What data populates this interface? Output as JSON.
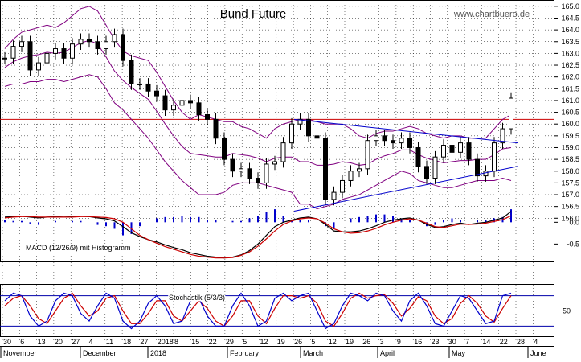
{
  "title": "Bund Future",
  "watermark": "www.chartbuero.de",
  "macd_label": "MACD (12/26/9) mit Histogramm",
  "stoch_label": "Stochastik (5/3/3)",
  "colors": {
    "candle": "#000000",
    "bollinger": "#800080",
    "trendline": "#0000cc",
    "resistance": "#cc0000",
    "macd_line": "#000000",
    "macd_signal": "#cc0000",
    "macd_hist": "#0000cc",
    "stoch_k": "#0000cc",
    "stoch_d": "#cc0000",
    "grid": "#000000"
  },
  "chart_data": [
    {
      "type": "line",
      "title": "Bund Future",
      "subtype": "candlestick with Bollinger bands",
      "ylim": [
        155.6,
        165.2
      ],
      "y_ticks": [
        156.0,
        156.5,
        157.0,
        157.5,
        158.0,
        158.5,
        159.0,
        159.5,
        160.0,
        160.5,
        161.0,
        161.5,
        162.0,
        162.5,
        163.0,
        163.5,
        164.0,
        164.5,
        165.0
      ],
      "x_ticks": [
        "30",
        "6",
        "13",
        "20",
        "27",
        "4",
        "11",
        "18",
        "27",
        "2018",
        "8",
        "15",
        "22",
        "29",
        "5",
        "12",
        "19",
        "26",
        "5",
        "12",
        "19",
        "26",
        "3",
        "9",
        "16",
        "23",
        "30",
        "7",
        "14",
        "22",
        "28",
        "4"
      ],
      "month_labels": [
        "November",
        "December",
        "2018",
        "February",
        "March",
        "April",
        "May",
        "June"
      ],
      "horizontal_line": 160.2,
      "series": [
        {
          "name": "Close (approx)",
          "values": [
            162.8,
            163.3,
            163.5,
            162.3,
            162.6,
            163.0,
            163.2,
            162.8,
            163.4,
            163.6,
            163.5,
            163.2,
            163.5,
            163.8,
            162.7,
            161.7,
            161.7,
            161.4,
            161.2,
            160.6,
            160.8,
            161.0,
            160.9,
            160.4,
            160.2,
            159.4,
            158.5,
            158.0,
            158.1,
            157.7,
            157.5,
            158.3,
            158.4,
            159.2,
            160.0,
            160.2,
            159.5,
            159.4,
            156.8,
            157.1,
            157.6,
            158.0,
            158.1,
            159.3,
            159.5,
            159.3,
            159.2,
            159.4,
            159.0,
            158.2,
            157.7,
            158.6,
            159.1,
            158.8,
            159.2,
            158.5,
            157.8,
            158.0,
            159.2,
            159.8,
            161.1
          ]
        },
        {
          "name": "Bollinger upper",
          "values": [
            163.2,
            163.6,
            163.9,
            164.0,
            164.1,
            164.2,
            164.1,
            164.3,
            164.6,
            164.9,
            165.0,
            164.8,
            164.2,
            163.6,
            163.1,
            162.9,
            162.8,
            162.7,
            162.2,
            161.6,
            161.0,
            160.5,
            160.2,
            160.4,
            160.3,
            160.2,
            160.1,
            160.1,
            159.9,
            159.8,
            159.6,
            159.4,
            159.8,
            160.0,
            160.1,
            160.2,
            160.2,
            160.1,
            160.0,
            160.0,
            160.0,
            159.8,
            159.5,
            159.4,
            159.6,
            159.7,
            159.7,
            159.8,
            159.9,
            159.8,
            159.6,
            159.5,
            159.4,
            159.5,
            159.5,
            159.4,
            159.4,
            159.4,
            159.8,
            160.2,
            160.4
          ]
        },
        {
          "name": "Bollinger lower",
          "values": [
            161.6,
            161.7,
            161.7,
            161.8,
            161.8,
            161.9,
            161.9,
            161.8,
            161.9,
            162.0,
            162.1,
            162.0,
            161.5,
            160.9,
            160.6,
            160.2,
            159.8,
            159.4,
            158.9,
            158.4,
            158.0,
            157.6,
            157.3,
            157.0,
            157.0,
            157.0,
            157.1,
            157.4,
            157.5,
            157.5,
            157.5,
            157.4,
            157.3,
            157.2,
            157.1,
            156.6,
            156.6,
            156.4,
            156.5,
            156.6,
            156.8,
            156.9,
            157.0,
            157.2,
            157.4,
            157.6,
            157.8,
            158.0,
            157.9,
            157.6,
            157.5,
            157.4,
            157.3,
            157.3,
            157.4,
            157.5,
            157.6,
            157.6,
            157.6,
            157.7,
            157.6
          ]
        }
      ],
      "trendlines": [
        {
          "name": "upper triangle",
          "from": [
            180,
            160.2
          ],
          "to": [
            319,
            159.2
          ]
        },
        {
          "name": "lower triangle",
          "from": [
            180,
            156.3
          ],
          "to": [
            319,
            158.2
          ]
        }
      ]
    },
    {
      "type": "line",
      "title": "MACD (12/26/9) mit Histogramm",
      "ylim": [
        -0.9,
        0.45
      ],
      "y_ticks": [
        0.0,
        -0.5
      ],
      "series": [
        {
          "name": "MACD",
          "values": [
            0.12,
            0.13,
            0.14,
            0.12,
            0.1,
            0.12,
            0.13,
            0.12,
            0.13,
            0.14,
            0.13,
            0.1,
            0.08,
            0.03,
            -0.1,
            -0.24,
            -0.33,
            -0.4,
            -0.45,
            -0.52,
            -0.58,
            -0.63,
            -0.7,
            -0.74,
            -0.78,
            -0.8,
            -0.82,
            -0.8,
            -0.75,
            -0.65,
            -0.5,
            -0.3,
            -0.1,
            0.0,
            0.05,
            0.1,
            0.12,
            0.08,
            -0.05,
            -0.2,
            -0.22,
            -0.22,
            -0.2,
            -0.15,
            -0.08,
            0.0,
            0.05,
            0.08,
            0.1,
            0.05,
            -0.05,
            -0.12,
            -0.1,
            -0.05,
            -0.02,
            -0.05,
            -0.02,
            0.0,
            0.05,
            0.1,
            0.25
          ]
        },
        {
          "name": "Signal",
          "values": [
            0.1,
            0.12,
            0.13,
            0.13,
            0.12,
            0.12,
            0.12,
            0.12,
            0.12,
            0.13,
            0.13,
            0.12,
            0.11,
            0.08,
            0.0,
            -0.15,
            -0.3,
            -0.4,
            -0.48,
            -0.56,
            -0.62,
            -0.68,
            -0.74,
            -0.78,
            -0.8,
            -0.82,
            -0.82,
            -0.81,
            -0.76,
            -0.68,
            -0.55,
            -0.38,
            -0.2,
            -0.05,
            0.03,
            0.08,
            0.1,
            0.08,
            -0.02,
            -0.15,
            -0.22,
            -0.25,
            -0.24,
            -0.2,
            -0.14,
            -0.06,
            0.0,
            0.05,
            0.08,
            0.05,
            -0.02,
            -0.1,
            -0.12,
            -0.08,
            -0.04,
            -0.05,
            -0.04,
            -0.02,
            0.02,
            0.06,
            0.15
          ]
        }
      ]
    },
    {
      "type": "line",
      "title": "Stochastik (5/3/3)",
      "ylim": [
        0,
        100
      ],
      "y_ticks": [
        50
      ],
      "reference_lines": [
        20,
        80
      ],
      "series": [
        {
          "name": "%K",
          "values": [
            70,
            85,
            80,
            40,
            20,
            30,
            70,
            85,
            80,
            45,
            30,
            60,
            85,
            75,
            30,
            15,
            30,
            65,
            80,
            60,
            25,
            30,
            70,
            75,
            40,
            20,
            20,
            60,
            85,
            60,
            20,
            30,
            75,
            85,
            70,
            80,
            85,
            50,
            15,
            25,
            60,
            85,
            80,
            70,
            85,
            80,
            50,
            30,
            70,
            85,
            60,
            25,
            20,
            50,
            80,
            75,
            50,
            25,
            30,
            80,
            85
          ]
        },
        {
          "name": "%D",
          "values": [
            60,
            75,
            80,
            60,
            35,
            25,
            50,
            75,
            85,
            60,
            40,
            50,
            75,
            80,
            50,
            25,
            25,
            45,
            70,
            70,
            40,
            30,
            50,
            70,
            55,
            30,
            20,
            40,
            70,
            70,
            40,
            25,
            55,
            80,
            80,
            75,
            80,
            65,
            30,
            20,
            45,
            75,
            85,
            75,
            80,
            82,
            65,
            40,
            55,
            78,
            70,
            40,
            25,
            35,
            65,
            80,
            65,
            40,
            28,
            55,
            80
          ]
        }
      ]
    }
  ]
}
